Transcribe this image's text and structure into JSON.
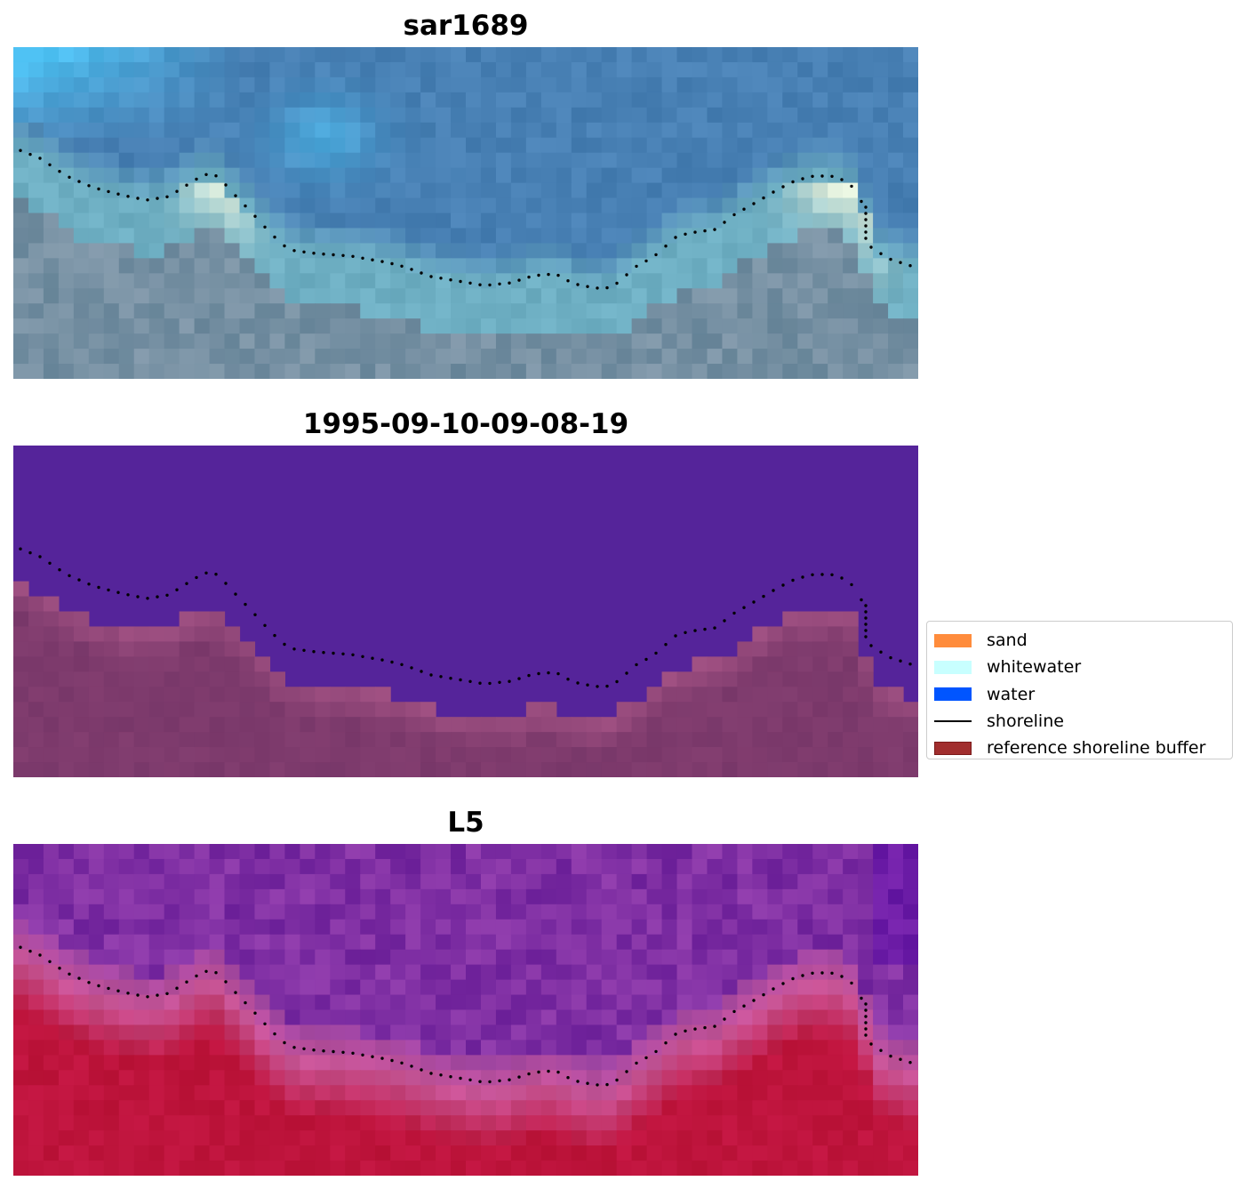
{
  "panels": [
    {
      "id": "rgb",
      "title": "sar1689"
    },
    {
      "id": "classified",
      "title": "1995-09-10-09-08-19"
    },
    {
      "id": "index",
      "title": "L5"
    }
  ],
  "legend": {
    "items": [
      {
        "label": "sand",
        "kind": "patch",
        "color": "#ff8c3c"
      },
      {
        "label": "whitewater",
        "kind": "patch",
        "color": "#c8ffff"
      },
      {
        "label": "water",
        "kind": "patch",
        "color": "#0055ff"
      },
      {
        "label": "shoreline",
        "kind": "line",
        "color": "#000000"
      },
      {
        "label": "reference shoreline buffer",
        "kind": "patch",
        "color": "#a12e2e",
        "edge": "#7a1a1a"
      }
    ]
  },
  "colors": {
    "water_class": "#55249a",
    "buffer_overlay": "#8a3a6e",
    "shoreline_dots": "#000000"
  }
}
